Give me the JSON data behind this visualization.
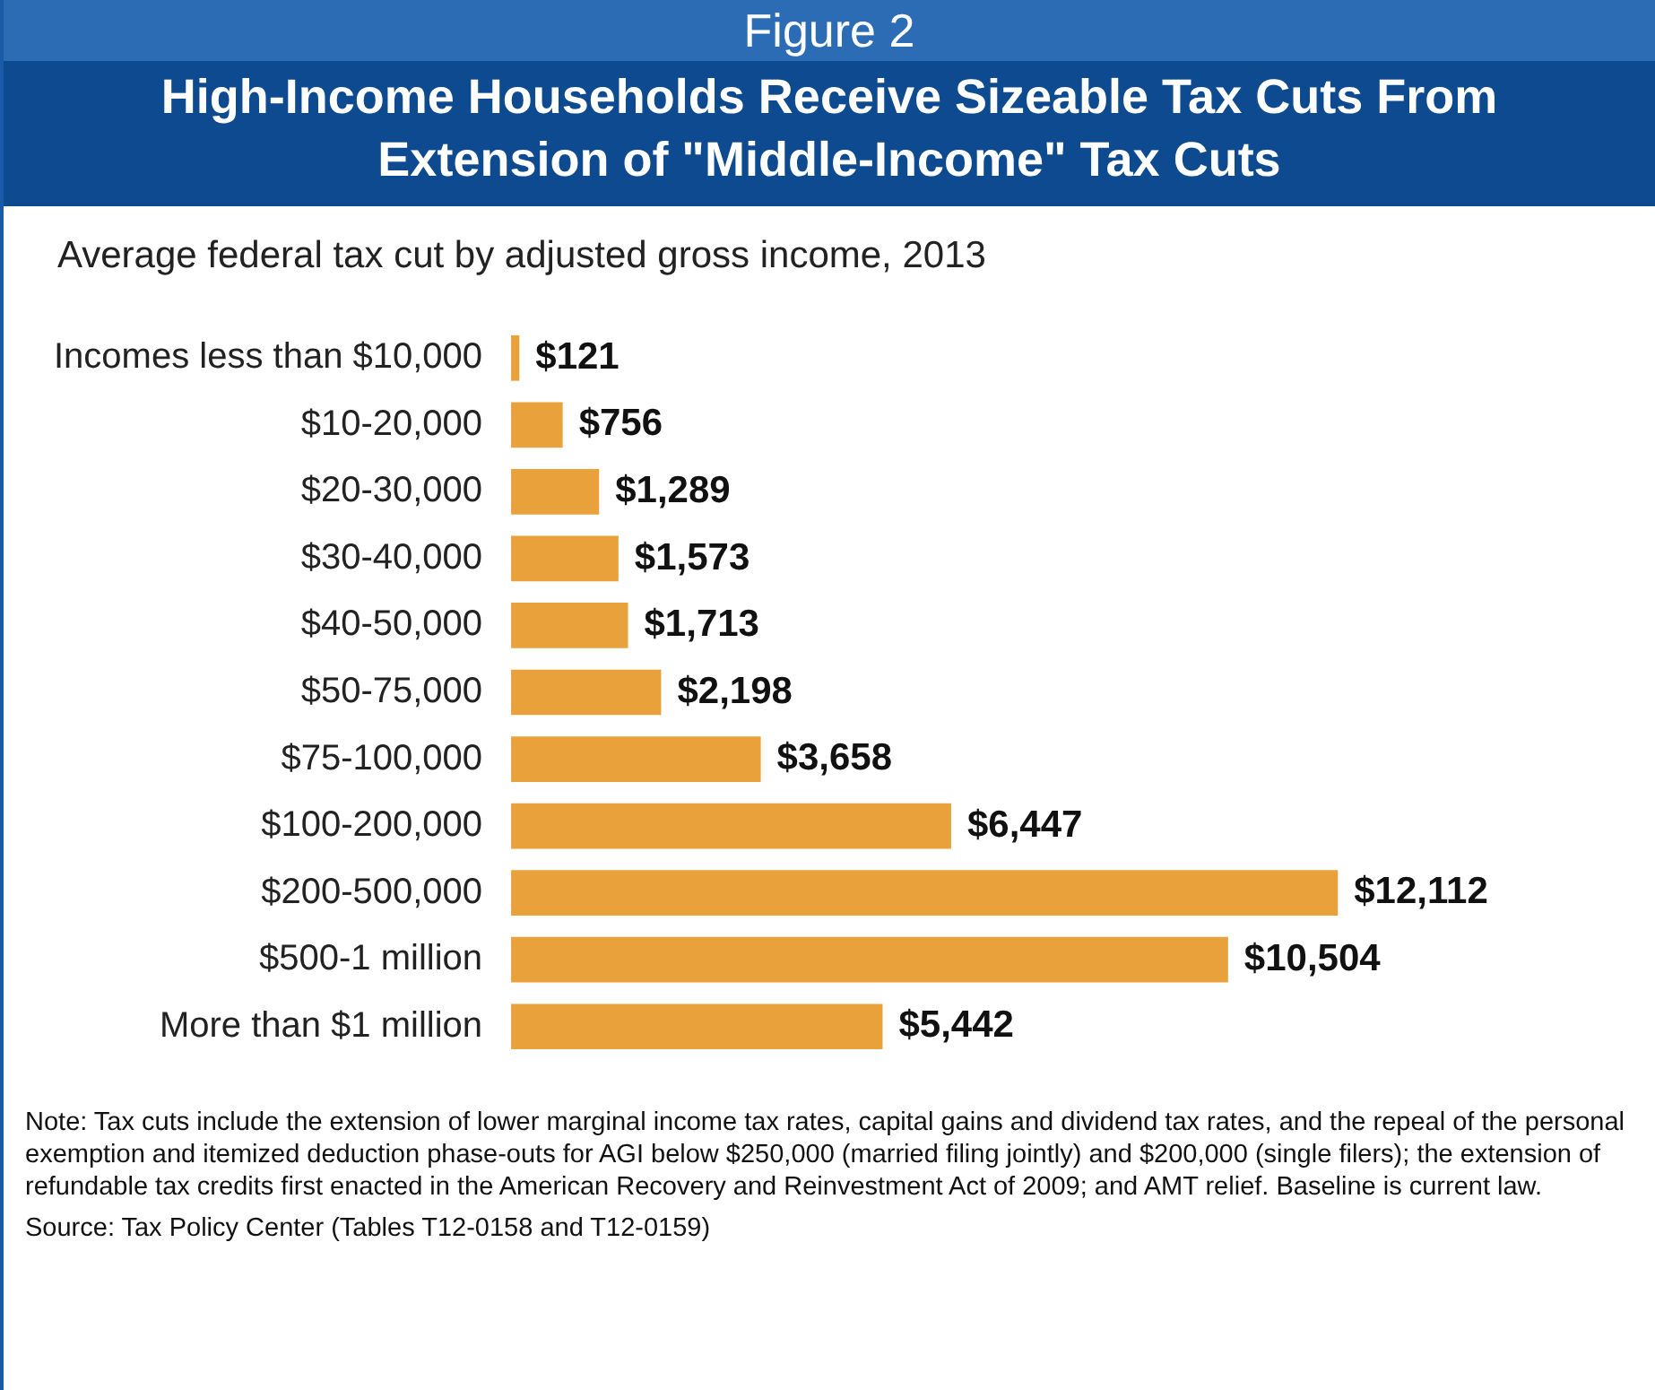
{
  "chart_data": {
    "type": "bar",
    "orientation": "horizontal",
    "title": "High-Income Households Receive Sizeable Tax Cuts From Extension of \"Middle-Income\" Tax Cuts",
    "subtitle": "Average federal tax cut by adjusted gross income, 2013",
    "categories": [
      "Incomes less than $10,000",
      "$10-20,000",
      "$20-30,000",
      "$30-40,000",
      "$40-50,000",
      "$50-75,000",
      "$75-100,000",
      "$100-200,000",
      "$200-500,000",
      "$500-1 million",
      "More than $1 million"
    ],
    "values": [
      121,
      756,
      1289,
      1573,
      1713,
      2198,
      3658,
      6447,
      12112,
      10504,
      5442
    ],
    "value_labels": [
      "$121",
      "$756",
      "$1,289",
      "$1,573",
      "$1,713",
      "$2,198",
      "$3,658",
      "$6,447",
      "$12,112",
      "$10,504",
      "$5,442"
    ],
    "color": "#e9a23b",
    "annotations": [
      "Figure 2",
      "Note: Tax cuts include the extension of lower marginal income tax rates, capital gains and dividend tax rates, and the repeal of the personal exemption and itemized deduction phase-outs for AGI below $250,000 (married filing jointly) and $200,000 (single filers); the extension of refundable tax credits first enacted in the American Recovery and Reinvestment Act of 2009; and AMT relief.  Baseline is current law.",
      "Source: Tax Policy Center (Tables T12-0158 and T12-0159)"
    ]
  }
}
